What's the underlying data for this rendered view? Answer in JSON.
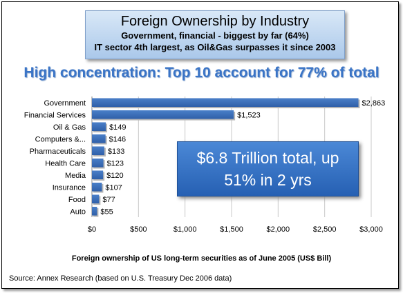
{
  "header": {
    "title": "Foreign Ownership by Industry",
    "subtitle_line1": "Government, financial - biggest by far (64%)",
    "subtitle_line2": "IT sector 4th largest, as Oil&Gas surpasses it since 2003"
  },
  "headline": "High concentration: Top 10 account for 77% of total",
  "callout": {
    "line1": "$6.8 Trillion total, up",
    "line2": "51% in 2 yrs"
  },
  "source": "Source: Annex Research (based on U.S. Treasury Dec 2006 data)",
  "colors": {
    "bar": "#4a7fc8",
    "bar_dark": "#2f5fa8",
    "title_box": "#bcd4f0",
    "headline": "#3a74c6",
    "callout": "#3a74c6"
  },
  "chart_data": {
    "type": "bar",
    "orientation": "horizontal",
    "categories": [
      "Government",
      "Financial Services",
      "Oil & Gas",
      "Computers &...",
      "Pharmaceuticals",
      "Health Care",
      "Media",
      "Insurance",
      "Food",
      "Auto"
    ],
    "values": [
      2863,
      1523,
      149,
      146,
      133,
      123,
      120,
      107,
      77,
      55
    ],
    "data_labels": [
      "$2,863",
      "$1,523",
      "$149",
      "$146",
      "$133",
      "$123",
      "$120",
      "$107",
      "$77",
      "$55"
    ],
    "xlabel": "Foreign ownership of US long-term securities as of June 2005 (US$ Bill)",
    "xlim": [
      0,
      3000
    ],
    "x_ticks": [
      0,
      500,
      1000,
      1500,
      2000,
      2500,
      3000
    ],
    "x_tick_labels": [
      "$0",
      "$500",
      "$1,000",
      "$1,500",
      "$2,000",
      "$2,500",
      "$3,000"
    ],
    "grid": true
  }
}
